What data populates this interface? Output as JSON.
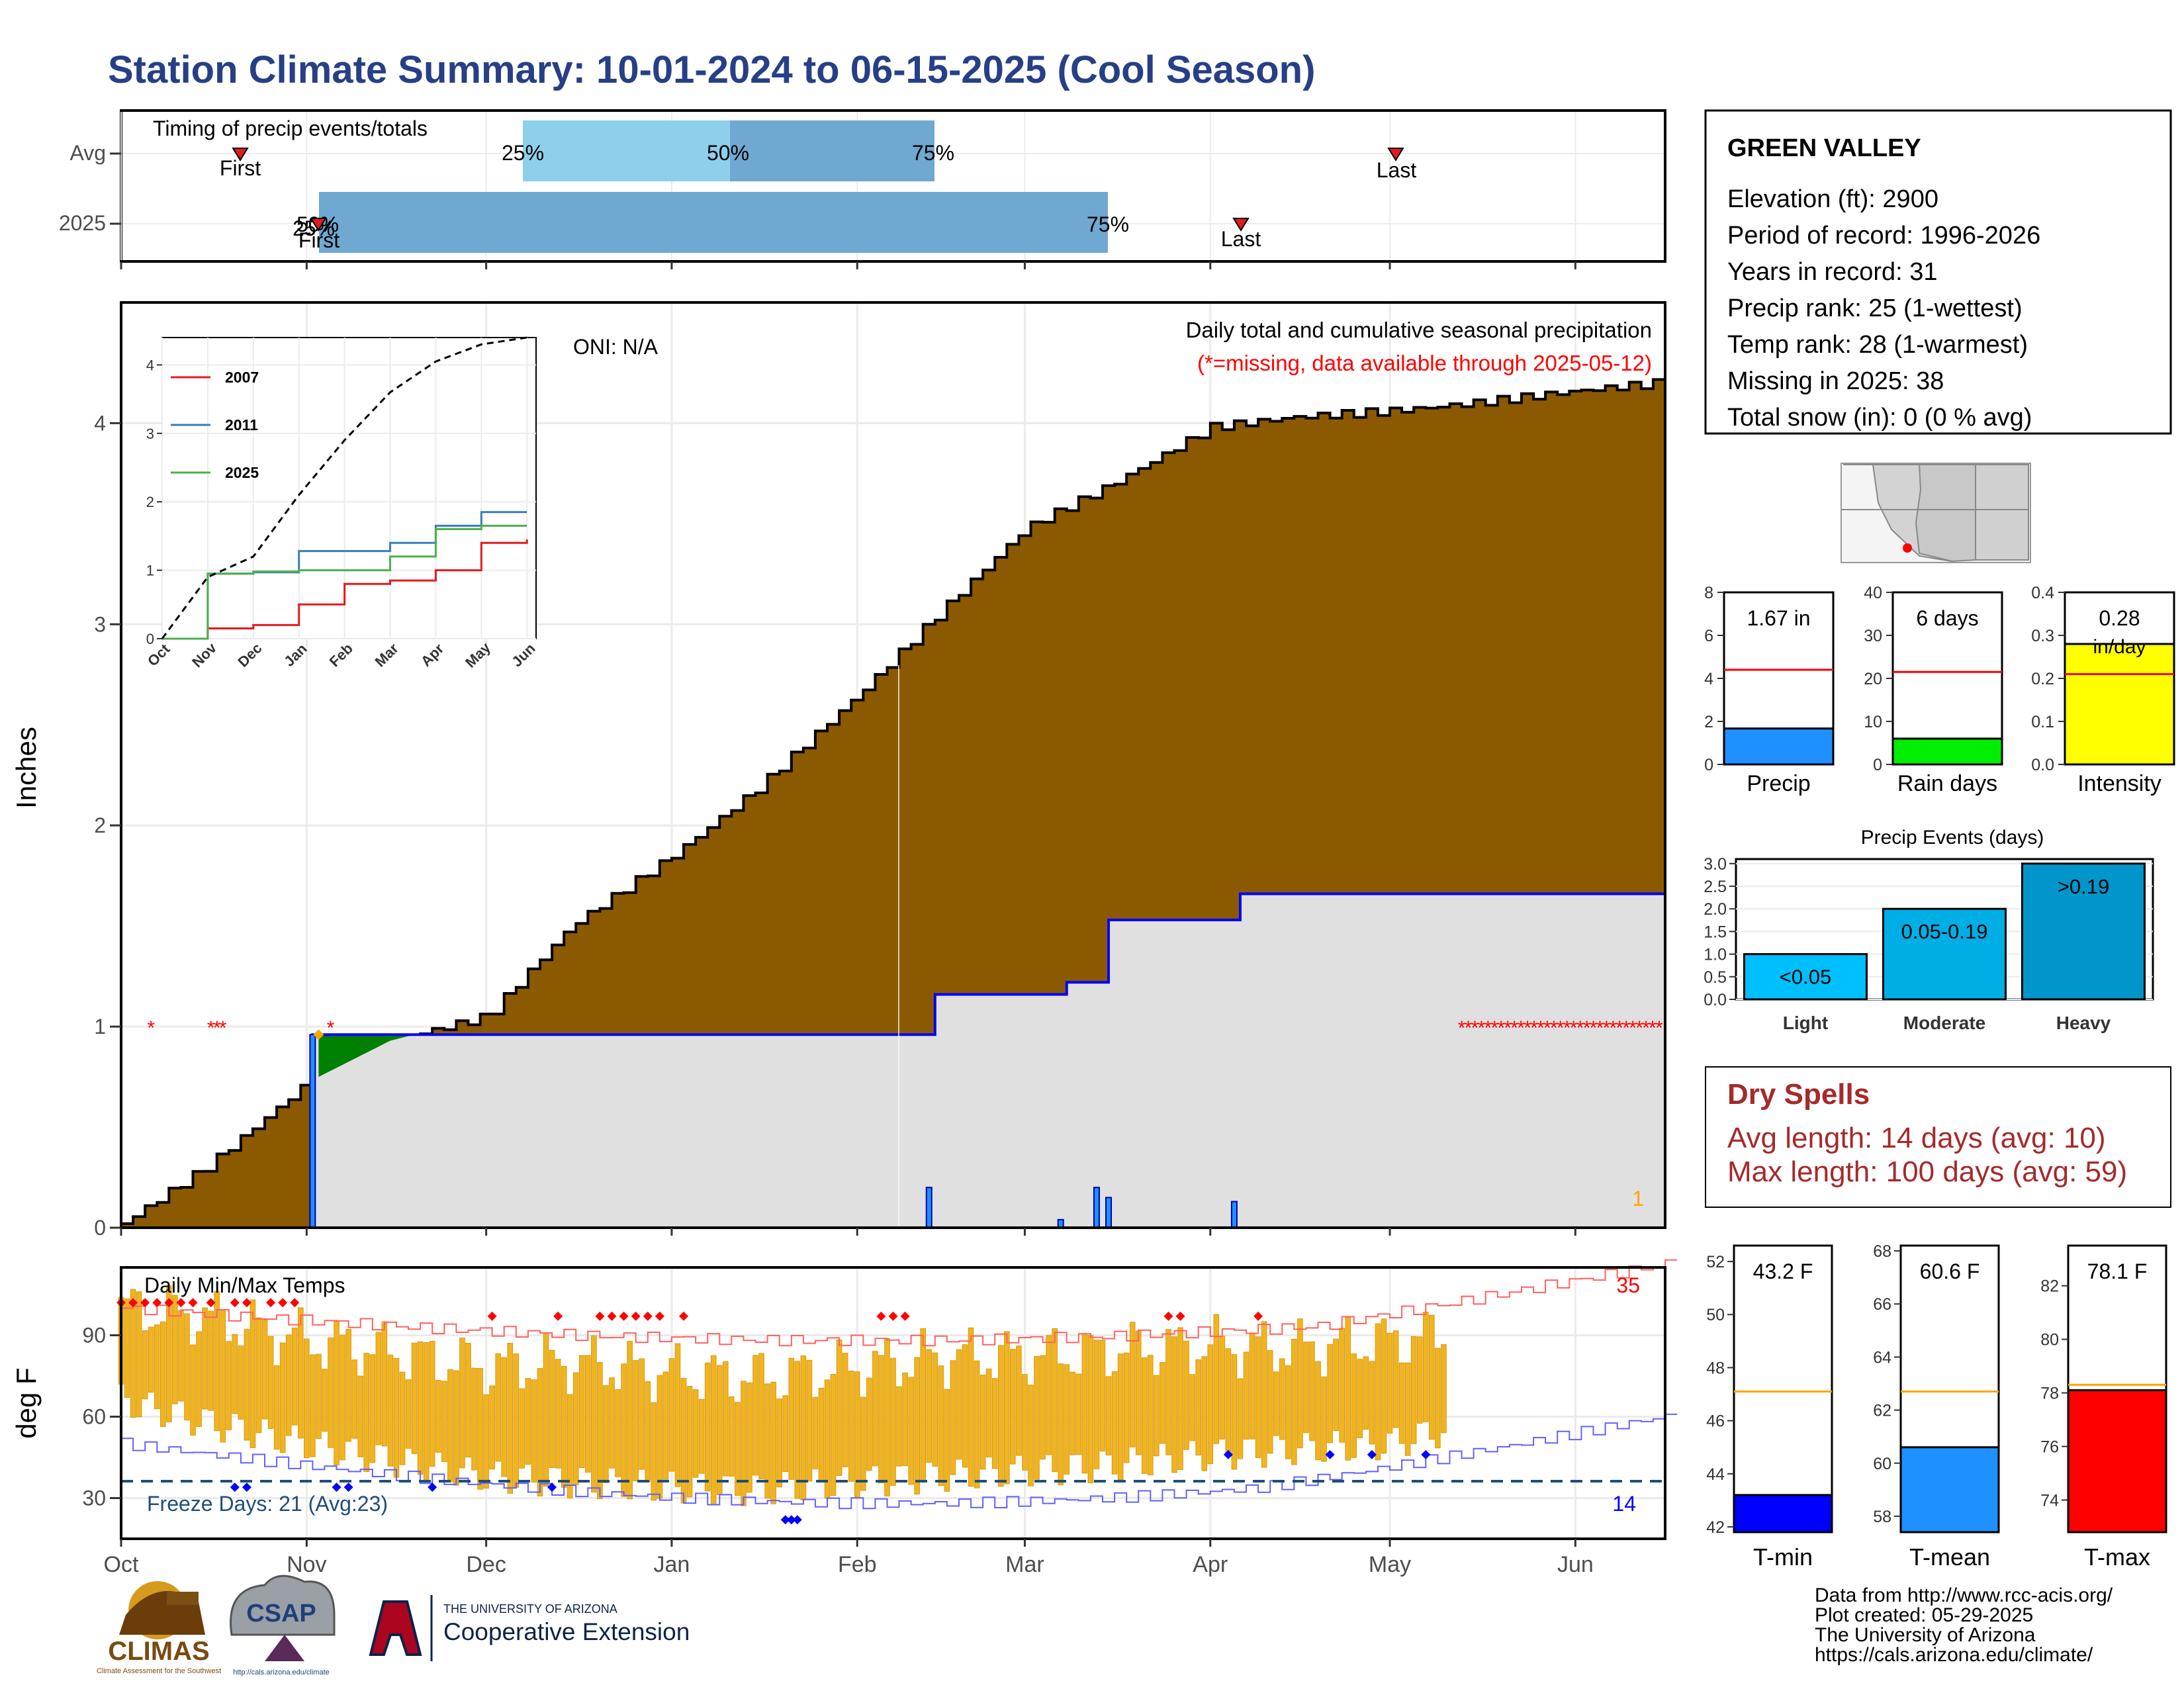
{
  "page": {
    "title": "Station Climate Summary: 10-01-2024 to 06-15-2025 (Cool Season)",
    "title_color": "#273f87"
  },
  "timing": {
    "label": "Timing of precip events/totals",
    "rows": [
      "Avg",
      "2025"
    ],
    "avg_bar_light": {
      "from": "Nov 18",
      "to": "Dec 25",
      "color": "#8ecfeb"
    },
    "avg_bar_dark": {
      "from": "Dec 25",
      "to": "Jan 29",
      "color": "#6fa8d0"
    },
    "avg_pct_labels": [
      "25%",
      "50%",
      "75%"
    ],
    "avg_first": "First",
    "avg_last": "Last",
    "y2025_bar": {
      "from": "Nov 04",
      "to": "Mar 16",
      "color": "#6fa8d0"
    },
    "y2025_overlap_label": "50%",
    "y2025_overlap_label2": "25%",
    "y2025_pct_label": "75%",
    "y2025_first": "First",
    "y2025_last": "Last"
  },
  "precip_panel": {
    "ylabel": "Inches",
    "yticks": [
      "0",
      "1",
      "2",
      "3",
      "4"
    ],
    "oni": "ONI: N/A",
    "caption": "Daily total and cumulative seasonal precipitation",
    "missing_note": "(*=missing, data available through 2025-05-12)",
    "missing_color": "#ff0000",
    "avg_fill_color": "#8b5a00",
    "obs_fill_color": "#e0e0e0",
    "obs_line_color": "#0000ff",
    "surplus_color": "#008000",
    "corner_count": "1",
    "missing_marker": "*"
  },
  "inset": {
    "yticks": [
      "0",
      "1",
      "2",
      "3",
      "4"
    ],
    "xticks": [
      "Oct",
      "Nov",
      "Dec",
      "Jan",
      "Feb",
      "Mar",
      "Apr",
      "May",
      "Jun"
    ],
    "legend": [
      {
        "name": "2007",
        "color": "#e41a1c"
      },
      {
        "name": "2011",
        "color": "#377eb8"
      },
      {
        "name": "2025",
        "color": "#4daf4a"
      }
    ]
  },
  "temp_panel": {
    "ylabel": "deg F",
    "title": "Daily Min/Max Temps",
    "yticks": [
      "30",
      "60",
      "90"
    ],
    "freeze_label": "Freeze Days: 21 (Avg:23)",
    "hot_count": "35",
    "cold_count": "14",
    "bar_color": "#f0b420",
    "max_line_color": "#ff6060",
    "min_line_color": "#6060ff"
  },
  "xaxis": [
    "Oct",
    "Nov",
    "Dec",
    "Jan",
    "Feb",
    "Mar",
    "Apr",
    "May",
    "Jun"
  ],
  "info_box": {
    "station": "GREEN VALLEY",
    "lines": [
      "Elevation (ft): 2900",
      "Period of record: 1996-2026",
      "Years in record: 31",
      "Precip rank: 25 (1-wettest)",
      "Temp rank: 28 (1-warmest)",
      "Missing in 2025: 38",
      "Total snow (in): 0 (0 % avg)"
    ]
  },
  "mini_bars": [
    {
      "title": "1.67 in",
      "label": "Precip",
      "value": 1.67,
      "avg": 4.4,
      "ymax": 8,
      "ticks": [
        "0",
        "2",
        "4",
        "6",
        "8"
      ],
      "color": "#1e90ff"
    },
    {
      "title": "6 days",
      "label": "Rain days",
      "value": 6,
      "avg": 21.5,
      "ymax": 40,
      "ticks": [
        "0",
        "10",
        "20",
        "30",
        "40"
      ],
      "color": "#00ee00"
    },
    {
      "title": "0.28",
      "subtitle": "in/day",
      "label": "Intensity",
      "value": 0.28,
      "avg": 0.21,
      "ymax": 0.4,
      "ticks": [
        "0.0",
        "0.1",
        "0.2",
        "0.3",
        "0.4"
      ],
      "color": "#ffff00"
    }
  ],
  "events": {
    "title": "Precip Events (days)",
    "categories": [
      "Light",
      "Moderate",
      "Heavy"
    ],
    "bar_labels": [
      "<0.05",
      "0.05-0.19",
      ">0.19"
    ],
    "values": [
      1,
      2,
      3
    ],
    "ticks": [
      "0.0",
      "0.5",
      "1.0",
      "1.5",
      "2.0",
      "2.5",
      "3.0"
    ],
    "colors": [
      "#00bfff",
      "#00aee6",
      "#0096cc"
    ]
  },
  "dry_spells": {
    "title": "Dry Spells",
    "avg": "Avg length: 14 days (avg: 10)",
    "max": "Max length: 100 days (avg: 59)",
    "color": "#a52a2a"
  },
  "temp_bars": [
    {
      "title": "43.2 F",
      "label": "T-min",
      "value": 43.2,
      "avg": 47.1,
      "ymin": 41.8,
      "ymax": 52.6,
      "ticks": [
        "42",
        "44",
        "46",
        "48",
        "50",
        "52"
      ],
      "color": "#0000ff"
    },
    {
      "title": "60.6 F",
      "label": "T-mean",
      "value": 60.6,
      "avg": 62.7,
      "ymin": 57.4,
      "ymax": 68.2,
      "ticks": [
        "58",
        "60",
        "62",
        "64",
        "66",
        "68"
      ],
      "color": "#1e90ff"
    },
    {
      "title": "78.1 F",
      "label": "T-max",
      "value": 78.1,
      "avg": 78.3,
      "ymin": 72.8,
      "ymax": 83.5,
      "ticks": [
        "74",
        "76",
        "78",
        "80",
        "82"
      ],
      "color": "#ff0000"
    }
  ],
  "footer": {
    "lines": [
      "Data from http://www.rcc-acis.org/",
      "Plot created: 05-29-2025",
      "The University of Arizona",
      "https://cals.arizona.edu/climate/"
    ]
  },
  "logos": {
    "climas": "CLIMAS",
    "climas_sub": "Climate Assessment for the Southwest",
    "csap": "CSAP",
    "csap_url": "http://cals.arizona.edu/climate",
    "ua_small": "THE UNIVERSITY OF ARIZONA",
    "ua_big": "Cooperative Extension"
  },
  "chart_data": [
    {
      "type": "area",
      "title": "Daily total and cumulative seasonal precipitation",
      "ylabel": "Inches",
      "ylim": [
        0,
        4.6
      ],
      "x": [
        "Oct 01",
        "Oct 15",
        "Nov 01",
        "Nov 15",
        "Dec 01",
        "Dec 15",
        "Jan 01",
        "Jan 15",
        "Feb 01",
        "Feb 15",
        "Mar 01",
        "Mar 15",
        "Apr 01",
        "Apr 15",
        "May 01",
        "May 15",
        "Jun 01",
        "Jun 15"
      ],
      "series": [
        {
          "name": "Average",
          "values": [
            0.02,
            0.3,
            0.72,
            0.93,
            1.05,
            1.5,
            1.85,
            2.18,
            2.65,
            3.07,
            3.48,
            3.69,
            3.98,
            4.03,
            4.06,
            4.1,
            4.16,
            4.2
          ]
        },
        {
          "name": "2025",
          "values": [
            0,
            0,
            0.02,
            0.96,
            0.96,
            0.96,
            0.96,
            0.96,
            0.96,
            1.16,
            1.16,
            1.53,
            1.66,
            1.66,
            1.66,
            1.66,
            1.66,
            1.66
          ]
        }
      ]
    },
    {
      "type": "line",
      "title": "",
      "ylim": [
        0,
        4.4
      ],
      "x": [
        "Oct",
        "Nov",
        "Dec",
        "Jan",
        "Feb",
        "Mar",
        "Apr",
        "May",
        "Jun"
      ],
      "series": [
        {
          "name": "2007",
          "values": [
            0,
            0.15,
            0.2,
            0.5,
            0.8,
            0.85,
            1.0,
            1.4,
            1.45
          ]
        },
        {
          "name": "2011",
          "values": [
            0,
            0.95,
            0.97,
            1.28,
            1.28,
            1.4,
            1.65,
            1.85,
            1.85
          ]
        },
        {
          "name": "2025",
          "values": [
            0,
            0.95,
            0.98,
            1.0,
            1.0,
            1.2,
            1.6,
            1.65,
            1.65
          ]
        },
        {
          "name": "",
          "values": [
            0,
            0.9,
            1.2,
            2.1,
            2.9,
            3.6,
            4.05,
            4.3,
            4.4
          ]
        }
      ]
    },
    {
      "type": "bar",
      "title": "Daily Min/Max Temps",
      "ylabel": "deg F",
      "ylim": [
        15,
        115
      ],
      "x": [
        "Oct 01",
        "Oct 15",
        "Nov 01",
        "Nov 15",
        "Dec 01",
        "Dec 15",
        "Jan 01",
        "Jan 15",
        "Feb 01",
        "Feb 15",
        "Mar 01",
        "Mar 15",
        "Apr 01",
        "Apr 15",
        "May 01",
        "May 10"
      ],
      "series": [
        {
          "name": "Tmax",
          "values": [
            100,
            97,
            88,
            84,
            78,
            80,
            76,
            74,
            78,
            82,
            82,
            84,
            86,
            85,
            88,
            90
          ]
        },
        {
          "name": "Tmin",
          "values": [
            66,
            58,
            50,
            44,
            38,
            36,
            34,
            33,
            36,
            38,
            40,
            42,
            46,
            48,
            50,
            55
          ]
        }
      ]
    },
    {
      "type": "bar",
      "title": "Precip Events (days)",
      "categories": [
        "Light",
        "Moderate",
        "Heavy"
      ],
      "values": [
        1,
        2,
        3
      ],
      "ylim": [
        0,
        3.1
      ]
    }
  ]
}
